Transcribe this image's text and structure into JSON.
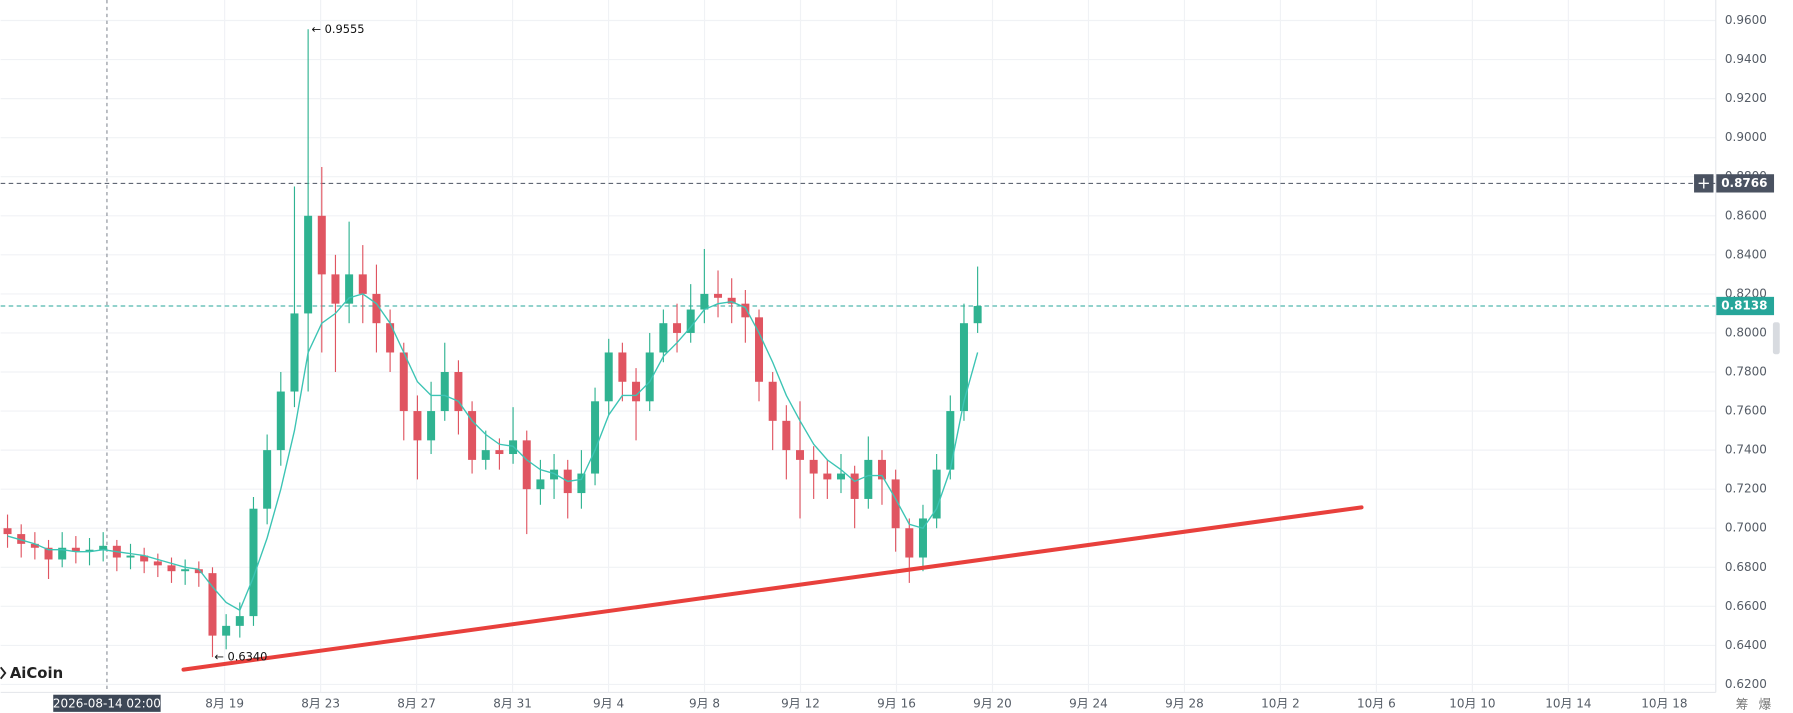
{
  "chart_data": {
    "type": "candlestick",
    "up_color": "#2fb391",
    "down_color": "#e05561",
    "open": [
      0.7,
      0.697,
      0.692,
      0.69,
      0.684,
      0.69,
      0.688,
      0.689,
      0.691,
      0.685,
      0.686,
      0.683,
      0.681,
      0.678,
      0.679,
      0.677,
      0.645,
      0.65,
      0.655,
      0.71,
      0.74,
      0.77,
      0.81,
      0.86,
      0.83,
      0.815,
      0.83,
      0.82,
      0.805,
      0.79,
      0.76,
      0.745,
      0.76,
      0.78,
      0.76,
      0.735,
      0.74,
      0.738,
      0.745,
      0.72,
      0.725,
      0.73,
      0.718,
      0.728,
      0.765,
      0.79,
      0.775,
      0.765,
      0.79,
      0.805,
      0.8,
      0.812,
      0.82,
      0.818,
      0.815,
      0.808,
      0.775,
      0.755,
      0.74,
      0.735,
      0.728,
      0.725,
      0.728,
      0.715,
      0.735,
      0.725,
      0.7,
      0.685,
      0.705,
      0.73,
      0.76,
      0.805
    ],
    "high": [
      0.707,
      0.702,
      0.698,
      0.694,
      0.698,
      0.696,
      0.695,
      0.698,
      0.694,
      0.692,
      0.69,
      0.687,
      0.685,
      0.684,
      0.683,
      0.68,
      0.656,
      0.662,
      0.716,
      0.748,
      0.78,
      0.875,
      0.9555,
      0.885,
      0.84,
      0.857,
      0.845,
      0.835,
      0.812,
      0.795,
      0.768,
      0.775,
      0.795,
      0.786,
      0.765,
      0.75,
      0.746,
      0.762,
      0.75,
      0.735,
      0.738,
      0.735,
      0.74,
      0.772,
      0.797,
      0.795,
      0.782,
      0.8,
      0.812,
      0.815,
      0.825,
      0.843,
      0.832,
      0.828,
      0.822,
      0.812,
      0.78,
      0.763,
      0.765,
      0.742,
      0.735,
      0.738,
      0.732,
      0.747,
      0.74,
      0.73,
      0.705,
      0.712,
      0.738,
      0.768,
      0.815,
      0.834
    ],
    "low": [
      0.69,
      0.685,
      0.684,
      0.674,
      0.68,
      0.682,
      0.681,
      0.683,
      0.678,
      0.679,
      0.677,
      0.675,
      0.672,
      0.671,
      0.67,
      0.634,
      0.638,
      0.644,
      0.65,
      0.702,
      0.732,
      0.762,
      0.77,
      0.79,
      0.78,
      0.805,
      0.805,
      0.79,
      0.78,
      0.745,
      0.725,
      0.738,
      0.755,
      0.748,
      0.728,
      0.73,
      0.73,
      0.733,
      0.697,
      0.712,
      0.715,
      0.705,
      0.71,
      0.722,
      0.758,
      0.765,
      0.745,
      0.76,
      0.785,
      0.79,
      0.795,
      0.805,
      0.808,
      0.805,
      0.795,
      0.765,
      0.74,
      0.725,
      0.705,
      0.715,
      0.715,
      0.718,
      0.7,
      0.71,
      0.712,
      0.688,
      0.672,
      0.678,
      0.7,
      0.725,
      0.755,
      0.8
    ],
    "close": [
      0.697,
      0.692,
      0.69,
      0.684,
      0.69,
      0.688,
      0.689,
      0.691,
      0.685,
      0.686,
      0.683,
      0.681,
      0.678,
      0.679,
      0.677,
      0.645,
      0.65,
      0.655,
      0.71,
      0.74,
      0.77,
      0.81,
      0.86,
      0.83,
      0.815,
      0.83,
      0.82,
      0.805,
      0.79,
      0.76,
      0.745,
      0.76,
      0.78,
      0.76,
      0.735,
      0.74,
      0.738,
      0.745,
      0.72,
      0.725,
      0.73,
      0.718,
      0.728,
      0.765,
      0.79,
      0.775,
      0.765,
      0.79,
      0.805,
      0.8,
      0.812,
      0.82,
      0.818,
      0.815,
      0.808,
      0.775,
      0.755,
      0.74,
      0.735,
      0.728,
      0.725,
      0.728,
      0.715,
      0.735,
      0.725,
      0.7,
      0.685,
      0.705,
      0.73,
      0.76,
      0.805,
      0.8138
    ],
    "ma": {
      "color": "#3cc4b4",
      "values": [
        0.696,
        0.694,
        0.692,
        0.689,
        0.689,
        0.688,
        0.688,
        0.689,
        0.688,
        0.687,
        0.686,
        0.684,
        0.682,
        0.68,
        0.679,
        0.67,
        0.662,
        0.658,
        0.675,
        0.695,
        0.72,
        0.75,
        0.79,
        0.805,
        0.81,
        0.818,
        0.82,
        0.815,
        0.805,
        0.79,
        0.775,
        0.768,
        0.768,
        0.765,
        0.755,
        0.748,
        0.743,
        0.742,
        0.735,
        0.73,
        0.728,
        0.724,
        0.725,
        0.74,
        0.758,
        0.768,
        0.768,
        0.775,
        0.788,
        0.795,
        0.803,
        0.812,
        0.815,
        0.816,
        0.813,
        0.8,
        0.785,
        0.768,
        0.755,
        0.743,
        0.735,
        0.73,
        0.724,
        0.727,
        0.727,
        0.715,
        0.702,
        0.7,
        0.71,
        0.73,
        0.765,
        0.79
      ]
    },
    "ylim": [
      0.6165,
      0.9705
    ],
    "yticks": [
      {
        "value": 0.62,
        "label": "0.6200"
      },
      {
        "value": 0.64,
        "label": "0.6400"
      },
      {
        "value": 0.66,
        "label": "0.6600"
      },
      {
        "value": 0.68,
        "label": "0.6800"
      },
      {
        "value": 0.7,
        "label": "0.7000"
      },
      {
        "value": 0.72,
        "label": "0.7200"
      },
      {
        "value": 0.74,
        "label": "0.7400"
      },
      {
        "value": 0.76,
        "label": "0.7600"
      },
      {
        "value": 0.78,
        "label": "0.7800"
      },
      {
        "value": 0.8,
        "label": "0.8000"
      },
      {
        "value": 0.82,
        "label": "0.8200"
      },
      {
        "value": 0.84,
        "label": "0.8400"
      },
      {
        "value": 0.86,
        "label": "0.8600"
      },
      {
        "value": 0.88,
        "label": "0.8800"
      },
      {
        "value": 0.9,
        "label": "0.9000"
      },
      {
        "value": 0.92,
        "label": "0.9200"
      },
      {
        "value": 0.94,
        "label": "0.9400"
      },
      {
        "value": 0.96,
        "label": "0.9600"
      }
    ],
    "grid": true,
    "xtick_labels": [
      "8月 19",
      "8月 23",
      "8月 27",
      "8月 31",
      "9月 4",
      "9月 8",
      "9月 12",
      "9月 16",
      "9月 20",
      "9月 24",
      "9月 28",
      "10月 2",
      "10月 6",
      "10月 10",
      "10月 14",
      "10月 18"
    ],
    "price_lines": [
      {
        "value": 0.8766,
        "color": "#4a5261"
      },
      {
        "value": 0.8138,
        "color": "#26a69a"
      }
    ],
    "annotations": [
      {
        "text": "← 0.9555",
        "value": 0.9555
      },
      {
        "text": "← 0.6340",
        "value": 0.634
      }
    ],
    "trend_line": {
      "color": "#e8403c",
      "values": [
        0.6276,
        0.7107
      ]
    },
    "crosshair_label": "2026-08-14 02:00",
    "watermark": "AiCoin",
    "footer_buttons": [
      "筹",
      "爆"
    ]
  }
}
